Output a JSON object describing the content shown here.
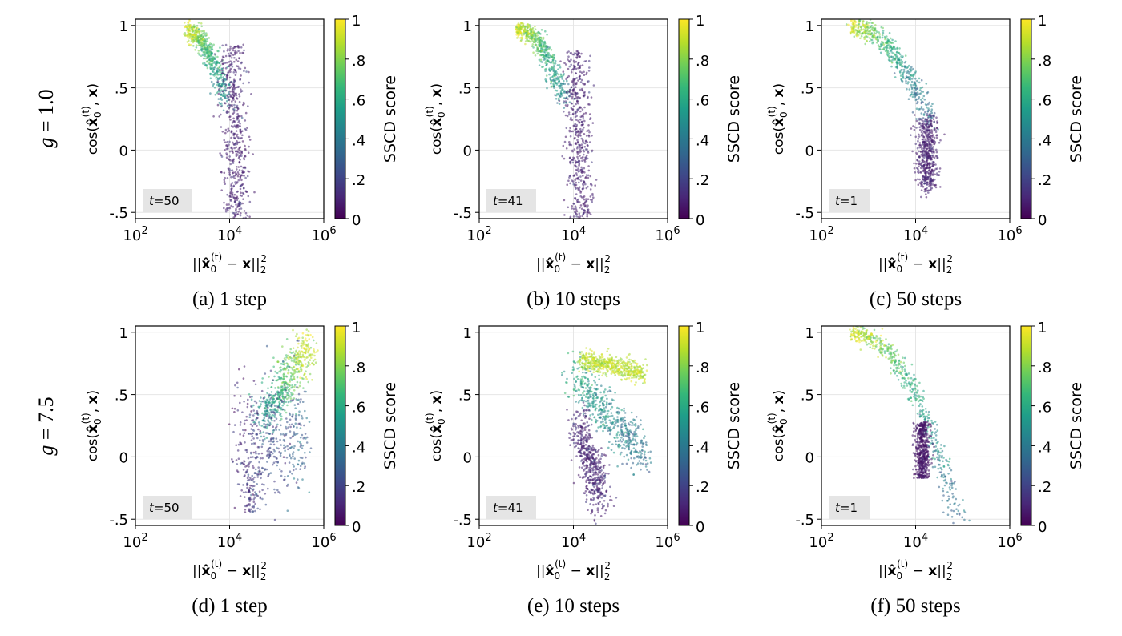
{
  "figure": {
    "row_labels": [
      "g = 1.0",
      "g = 7.5"
    ],
    "row_labels_parts": [
      {
        "var": "g",
        "eq": " = 1.0"
      },
      {
        "var": "g",
        "eq": " = 7.5"
      }
    ],
    "colorbar_label": "SSCD score",
    "colorbar_ticks": [
      "0",
      ".2",
      ".4",
      ".6",
      ".8",
      "1"
    ],
    "colormap": [
      "#440154",
      "#482878",
      "#3e4989",
      "#31688e",
      "#26828e",
      "#1f9e89",
      "#35b779",
      "#6ece58",
      "#b5de2b",
      "#fde725"
    ],
    "xlabel": "||x̂₀⁽ᵗ⁾ − x||₂²",
    "ylabel": "cos(x̂₀⁽ᵗ⁾, x)"
  },
  "chart_data": [
    {
      "type": "scatter",
      "panel": "a",
      "caption": "(a) 1 step",
      "guidance": "g = 1.0",
      "t_badge": "t = 50",
      "xlabel": "||x̂₀⁽ᵗ⁾ − x||₂²",
      "ylabel": "cos(x̂₀⁽ᵗ⁾, x)",
      "xscale": "log",
      "xlim": [
        100,
        1000000
      ],
      "ylim": [
        -0.55,
        1.05
      ],
      "xticks": [
        "10^2",
        "10^4",
        "10^6"
      ],
      "yticks": [
        "-.5",
        "0",
        ".5",
        "1"
      ],
      "colorbar": {
        "label": "SSCD score",
        "range": [
          0,
          1
        ]
      },
      "grid": true,
      "clusters": [
        {
          "desc": "high-similarity arc",
          "logx": [
            3.1,
            3.9
          ],
          "y": [
            0.95,
            0.4
          ],
          "score": [
            0.95,
            0.45
          ]
        },
        {
          "desc": "low-score dense column",
          "logx": [
            3.9,
            4.4
          ],
          "y": [
            0.85,
            -0.55
          ],
          "score": [
            0.1,
            0.02
          ]
        }
      ]
    },
    {
      "type": "scatter",
      "panel": "b",
      "caption": "(b) 10 steps",
      "guidance": "g = 1.0",
      "t_badge": "t = 41",
      "xlabel": "||x̂₀⁽ᵗ⁾ − x||₂²",
      "ylabel": "cos(x̂₀⁽ᵗ⁾, x)",
      "xscale": "log",
      "xlim": [
        100,
        1000000
      ],
      "ylim": [
        -0.55,
        1.05
      ],
      "xticks": [
        "10^2",
        "10^4",
        "10^6"
      ],
      "yticks": [
        "-.5",
        "0",
        ".5",
        "1"
      ],
      "colorbar": {
        "label": "SSCD score",
        "range": [
          0,
          1
        ]
      },
      "grid": true,
      "clusters": [
        {
          "desc": "high-similarity arc",
          "logx": [
            2.8,
            3.8
          ],
          "y": [
            0.97,
            0.4
          ],
          "score": [
            0.95,
            0.45
          ]
        },
        {
          "desc": "low-score dense column",
          "logx": [
            3.8,
            4.4
          ],
          "y": [
            0.8,
            -0.55
          ],
          "score": [
            0.1,
            0.02
          ]
        }
      ]
    },
    {
      "type": "scatter",
      "panel": "c",
      "caption": "(c) 50 steps",
      "guidance": "g = 1.0",
      "t_badge": "t = 1",
      "xlabel": "||x̂₀⁽ᵗ⁾ − x||₂²",
      "ylabel": "cos(x̂₀⁽ᵗ⁾, x)",
      "xscale": "log",
      "xlim": [
        100,
        1000000
      ],
      "ylim": [
        -0.55,
        1.05
      ],
      "xticks": [
        "10^2",
        "10^4",
        "10^6"
      ],
      "yticks": [
        "-.5",
        "0",
        ".5",
        "1"
      ],
      "colorbar": {
        "label": "SSCD score",
        "range": [
          0,
          1
        ]
      },
      "grid": true,
      "clusters": [
        {
          "desc": "smooth decreasing arc",
          "logx": [
            2.6,
            4.3
          ],
          "y": [
            0.99,
            0.2
          ],
          "score": [
            0.95,
            0.3
          ]
        },
        {
          "desc": "low-score blob",
          "logx": [
            4.0,
            4.6
          ],
          "y": [
            0.2,
            -0.35
          ],
          "score": [
            0.1,
            0.02
          ]
        }
      ]
    },
    {
      "type": "scatter",
      "panel": "d",
      "caption": "(d) 1 step",
      "guidance": "g = 7.5",
      "t_badge": "t = 50",
      "xlabel": "||x̂₀⁽ᵗ⁾ − x||₂²",
      "ylabel": "cos(x̂₀⁽ᵗ⁾, x)",
      "xscale": "log",
      "xlim": [
        100,
        1000000
      ],
      "ylim": [
        -0.55,
        1.05
      ],
      "xticks": [
        "10^2",
        "10^4",
        "10^6"
      ],
      "yticks": [
        "-.5",
        "0",
        ".5",
        "1"
      ],
      "colorbar": {
        "label": "SSCD score",
        "range": [
          0,
          1
        ]
      },
      "grid": true,
      "clusters": [
        {
          "desc": "rising high-score wedge",
          "logx": [
            4.5,
            5.7
          ],
          "y": [
            0.4,
            0.93
          ],
          "score": [
            0.5,
            0.98
          ]
        },
        {
          "desc": "broad low-score cloud",
          "logx": [
            4.0,
            5.7
          ],
          "y": [
            0.7,
            -0.45
          ],
          "score": [
            0.35,
            0.02
          ]
        }
      ]
    },
    {
      "type": "scatter",
      "panel": "e",
      "caption": "(e) 10 steps",
      "guidance": "g = 7.5",
      "t_badge": "t = 41",
      "xlabel": "||x̂₀⁽ᵗ⁾ − x||₂²",
      "ylabel": "cos(x̂₀⁽ᵗ⁾, x)",
      "xscale": "log",
      "xlim": [
        100,
        1000000
      ],
      "ylim": [
        -0.55,
        1.05
      ],
      "xticks": [
        "10^2",
        "10^4",
        "10^6"
      ],
      "yticks": [
        "-.5",
        "0",
        ".5",
        "1"
      ],
      "colorbar": {
        "label": "SSCD score",
        "range": [
          0,
          1
        ]
      },
      "grid": true,
      "clusters": [
        {
          "desc": "high-score band",
          "logx": [
            4.1,
            5.5
          ],
          "y": [
            0.8,
            0.65
          ],
          "score": [
            0.95,
            0.9
          ]
        },
        {
          "desc": "mid-score diagonal",
          "logx": [
            4.0,
            5.6
          ],
          "y": [
            0.7,
            0.0
          ],
          "score": [
            0.6,
            0.4
          ]
        },
        {
          "desc": "low-score column",
          "logx": [
            3.9,
            4.8
          ],
          "y": [
            0.3,
            -0.5
          ],
          "score": [
            0.15,
            0.02
          ]
        }
      ]
    },
    {
      "type": "scatter",
      "panel": "f",
      "caption": "(f) 50 steps",
      "guidance": "g = 7.5",
      "t_badge": "t = 1",
      "xlabel": "||x̂₀⁽ᵗ⁾ − x||₂²",
      "ylabel": "cos(x̂₀⁽ᵗ⁾, x)",
      "xscale": "log",
      "xlim": [
        100,
        1000000
      ],
      "ylim": [
        -0.55,
        1.05
      ],
      "xticks": [
        "10^2",
        "10^4",
        "10^6"
      ],
      "yticks": [
        "-.5",
        "0",
        ".5",
        "1"
      ],
      "colorbar": {
        "label": "SSCD score",
        "range": [
          0,
          1
        ]
      },
      "grid": true,
      "clusters": [
        {
          "desc": "long decreasing arc",
          "logx": [
            2.6,
            4.9
          ],
          "y": [
            0.99,
            -0.5
          ],
          "score": [
            0.95,
            0.35
          ]
        },
        {
          "desc": "low-score blob",
          "logx": [
            4.0,
            4.4
          ],
          "y": [
            0.25,
            -0.15
          ],
          "score": [
            0.1,
            0.02
          ]
        }
      ]
    }
  ]
}
